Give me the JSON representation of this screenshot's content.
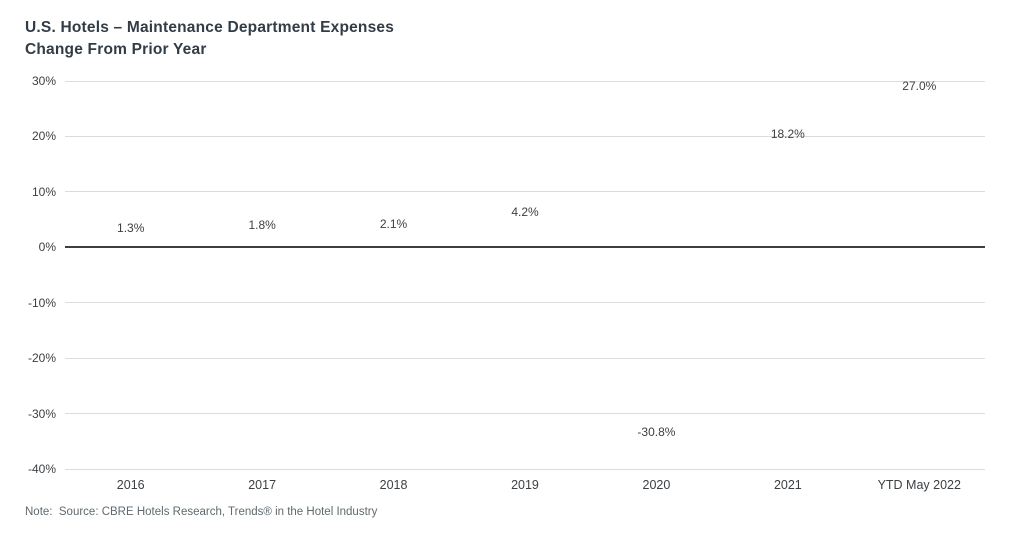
{
  "header": {
    "title_line1": "U.S. Hotels – Maintenance Department Expenses",
    "title_line2": "Change From Prior Year"
  },
  "note": "Note:  Source: CBRE Hotels Research, Trends® in the Hotel Industry",
  "colors": {
    "bar": "#8cc8b6",
    "gridline": "#dcdcdc",
    "zero_line": "#3a3f42",
    "title_text": "#323c46",
    "axis_text": "#3c4043",
    "note_text": "#5f6a6e"
  },
  "chart_data": {
    "type": "bar",
    "title": "U.S. Hotels – Maintenance Department Expenses — Change From Prior Year",
    "categories": [
      "2016",
      "2017",
      "2018",
      "2019",
      "2020",
      "2021",
      "YTD May 2022"
    ],
    "values": [
      1.3,
      1.8,
      2.1,
      4.2,
      -30.8,
      18.2,
      27.0
    ],
    "value_labels": [
      "1.3%",
      "1.8%",
      "2.1%",
      "4.2%",
      "-30.8%",
      "18.2%",
      "27.0%"
    ],
    "xlabel": "",
    "ylabel": "",
    "ylim": [
      -40,
      30
    ],
    "ytick_step": 10,
    "ytick_labels": [
      "30%",
      "20%",
      "10%",
      "0%",
      "-10%",
      "-20%",
      "-30%",
      "-40%"
    ],
    "grid": true,
    "legend_position": "none",
    "bar_color": "#8cc8b6"
  }
}
